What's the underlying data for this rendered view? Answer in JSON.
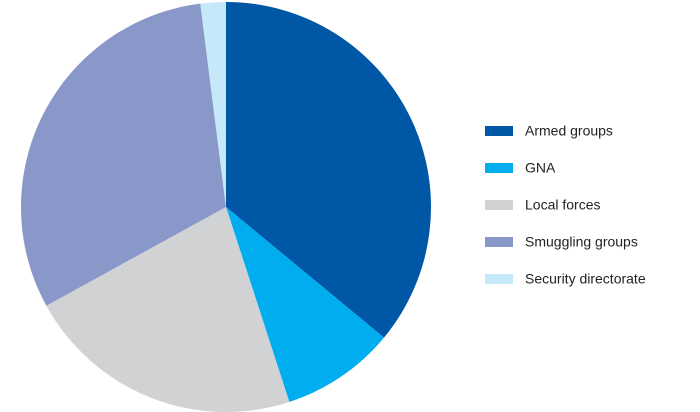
{
  "chart_data": {
    "type": "pie",
    "categories": [
      "Armed groups",
      "GNA",
      "Local forces",
      "Smuggling groups",
      "Security directorate"
    ],
    "values": [
      36,
      9,
      22,
      31,
      2
    ],
    "colors": [
      "#0057a6",
      "#00aeef",
      "#d1d2d4",
      "#8a98c9",
      "#c6e9f9"
    ]
  }
}
